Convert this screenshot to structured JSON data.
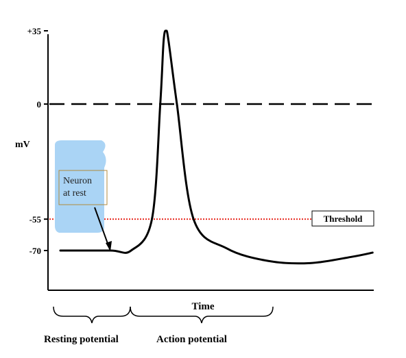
{
  "chart_data": {
    "type": "line",
    "ylabel": "mV",
    "xlabel": "Time",
    "ylim": [
      -100,
      35
    ],
    "yticks": [
      {
        "value": 35,
        "label": "+35"
      },
      {
        "value": 0,
        "label": "0"
      },
      {
        "value": -55,
        "label": "-55"
      },
      {
        "value": -70,
        "label": "-70"
      }
    ],
    "series": [
      {
        "x": [
          0,
          12,
          17,
          22,
          24,
          24.8,
          25.4,
          26,
          28,
          32,
          40,
          50,
          60,
          70,
          75
        ],
        "y": [
          -70,
          -70,
          -70,
          -55,
          0,
          30,
          35,
          30,
          0,
          -55,
          -69,
          -75,
          -76,
          -73,
          -71
        ]
      }
    ],
    "reference_lines": {
      "zero": {
        "value": 0,
        "style": "dashed"
      },
      "threshold": {
        "value": -55,
        "label": "Threshold",
        "color": "#e8281e",
        "style": "dotted"
      }
    },
    "annotations": {
      "neuron_rest": "Neuron\nat rest",
      "resting_potential": "Resting potential",
      "action_potential": "Action potential"
    },
    "colors": {
      "curve": "#000000",
      "threshold": "#e8281e",
      "highlight": "#aad4f5",
      "callout_border": "#b08a3c"
    }
  }
}
